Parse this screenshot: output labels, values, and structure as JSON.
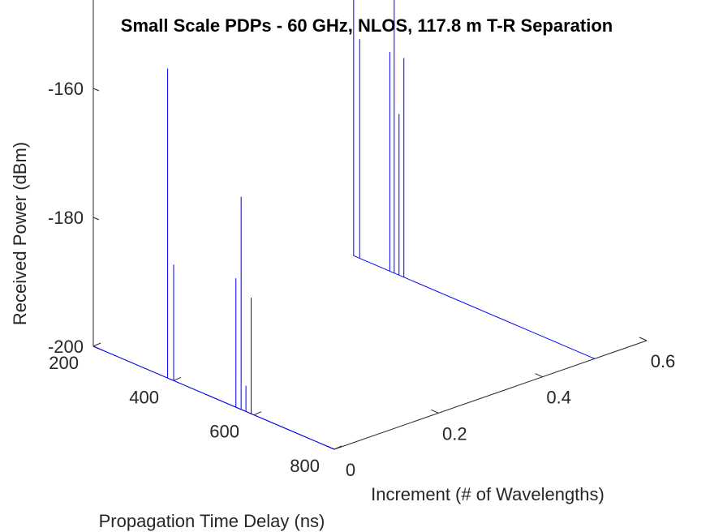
{
  "chart_data": {
    "type": "line",
    "subtype": "3d-waterfall",
    "title": "Small Scale PDPs - 60 GHz, NLOS, 117.8 m T-R Separation",
    "xlabel": "Propagation Time Delay (ns)",
    "ylabel": "Increment (# of Wavelengths)",
    "zlabel": "Received Power (dBm)",
    "xlim": [
      200,
      800
    ],
    "ylim": [
      0,
      0.6
    ],
    "zlim": [
      -200,
      -140
    ],
    "x_ticks": [
      "200",
      "400",
      "600",
      "800"
    ],
    "y_ticks": [
      "0",
      "0.2",
      "0.4",
      "0.6"
    ],
    "z_ticks": [
      "-200",
      "-180",
      "-160"
    ],
    "grid": false,
    "line_color": "#0000ff",
    "series": [
      {
        "increment": 0,
        "peaks": [
          {
            "delay": 385,
            "power": -152
          },
          {
            "delay": 400,
            "power": -182
          },
          {
            "delay": 555,
            "power": -180
          },
          {
            "delay": 568,
            "power": -167
          },
          {
            "delay": 580,
            "power": -196
          },
          {
            "delay": 593,
            "power": -182
          }
        ]
      },
      {
        "increment": 0.5,
        "peaks": [
          {
            "delay": 200,
            "power": -143
          },
          {
            "delay": 215,
            "power": -166
          },
          {
            "delay": 290,
            "power": -166
          },
          {
            "delay": 301,
            "power": -152
          },
          {
            "delay": 313,
            "power": -175
          },
          {
            "delay": 325,
            "power": -166
          }
        ]
      }
    ]
  }
}
